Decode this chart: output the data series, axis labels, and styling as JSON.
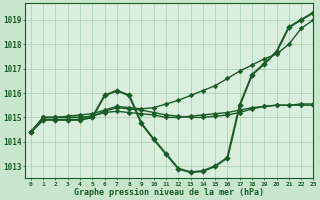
{
  "title": "Graphe pression niveau de la mer (hPa)",
  "background_color": "#c8e6cc",
  "plot_bg_color": "#daeede",
  "grid_color": "#a8ceb0",
  "line_color": "#1a5c28",
  "xlim": [
    -0.5,
    23
  ],
  "ylim": [
    1012.5,
    1019.7
  ],
  "yticks": [
    1013,
    1014,
    1015,
    1016,
    1017,
    1018,
    1019
  ],
  "xticks": [
    0,
    1,
    2,
    3,
    4,
    5,
    6,
    7,
    8,
    9,
    10,
    11,
    12,
    13,
    14,
    15,
    16,
    17,
    18,
    19,
    20,
    21,
    22,
    23
  ],
  "series": [
    {
      "x": [
        0,
        1,
        2,
        3,
        4,
        5,
        6,
        7,
        8,
        9,
        10,
        11,
        12,
        13,
        14,
        15,
        16,
        17,
        18,
        19,
        20,
        21,
        22,
        23
      ],
      "y": [
        1014.4,
        1014.9,
        1014.9,
        1014.9,
        1014.9,
        1015.0,
        1015.9,
        1016.1,
        1015.9,
        1014.75,
        1014.1,
        1013.5,
        1012.9,
        1012.75,
        1012.8,
        1013.0,
        1013.35,
        1015.5,
        1016.75,
        1017.2,
        1017.7,
        1018.7,
        1019.0,
        1019.3
      ],
      "lw": 1.5,
      "ls": "-",
      "marker": "D",
      "ms": 2.8
    },
    {
      "x": [
        0,
        1,
        2,
        3,
        4,
        5,
        6,
        7,
        8,
        9,
        10,
        11,
        12,
        13,
        14,
        15,
        16,
        17,
        18,
        19,
        20,
        21,
        22,
        23
      ],
      "y": [
        1014.4,
        1015.0,
        1015.0,
        1015.05,
        1015.1,
        1015.15,
        1015.3,
        1015.45,
        1015.4,
        1015.35,
        1015.4,
        1015.55,
        1015.7,
        1015.9,
        1016.1,
        1016.3,
        1016.6,
        1016.9,
        1017.15,
        1017.4,
        1017.6,
        1018.0,
        1018.65,
        1019.0
      ],
      "lw": 1.0,
      "ls": "-",
      "marker": "D",
      "ms": 2.3
    },
    {
      "x": [
        0,
        1,
        2,
        3,
        4,
        5,
        6,
        7,
        8,
        9,
        10,
        11,
        12,
        13,
        14,
        15,
        16,
        17,
        18,
        19,
        20,
        21,
        22,
        23
      ],
      "y": [
        1014.4,
        1015.0,
        1015.0,
        1015.0,
        1015.0,
        1015.05,
        1015.2,
        1015.25,
        1015.2,
        1015.15,
        1015.1,
        1015.0,
        1015.0,
        1015.05,
        1015.1,
        1015.15,
        1015.2,
        1015.3,
        1015.4,
        1015.45,
        1015.5,
        1015.5,
        1015.5,
        1015.5
      ],
      "lw": 1.0,
      "ls": "-",
      "marker": "D",
      "ms": 2.3
    },
    {
      "x": [
        0,
        1,
        2,
        3,
        4,
        5,
        6,
        7,
        8,
        9,
        10,
        11,
        12,
        13,
        14,
        15,
        16,
        17,
        18,
        19,
        20,
        21,
        22,
        23
      ],
      "y": [
        1014.4,
        1015.0,
        1015.0,
        1015.0,
        1015.0,
        1015.05,
        1015.25,
        1015.4,
        1015.35,
        1015.3,
        1015.2,
        1015.1,
        1015.05,
        1015.0,
        1015.0,
        1015.05,
        1015.1,
        1015.2,
        1015.35,
        1015.45,
        1015.5,
        1015.5,
        1015.55,
        1015.55
      ],
      "lw": 1.0,
      "ls": "-",
      "marker": "D",
      "ms": 2.3
    }
  ]
}
